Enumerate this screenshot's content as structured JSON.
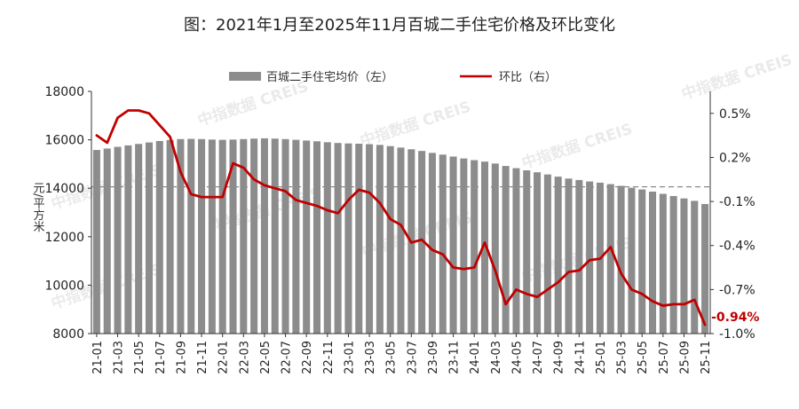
{
  "title": "图：2021年1月至2025年11月百城二手住宅价格及环比变化",
  "watermark": "中指数据 CREIS",
  "chart_data": {
    "type": "bar",
    "title": "图：2021年1月至2025年11月百城二手住宅价格及环比变化",
    "legend_position": "top-center",
    "ylabel_left": "元/平方米",
    "left_axis": {
      "min": 8000,
      "max": 18000,
      "ticks": [
        "8000",
        "10000",
        "12000",
        "14000",
        "16000",
        "18000"
      ]
    },
    "right_axis": {
      "min": -1.0,
      "max": 0.65,
      "ticks": [
        "0.5%",
        "0.2%",
        "-0.1%",
        "-0.4%",
        "-0.7%",
        "-1.0%"
      ],
      "tick_values": [
        0.5,
        0.2,
        -0.1,
        -0.4,
        -0.7,
        -1.0
      ],
      "zero_reference_line": true
    },
    "x_tick_labels": [
      "21-01",
      "21-03",
      "21-05",
      "21-07",
      "21-09",
      "21-11",
      "22-01",
      "22-03",
      "22-05",
      "22-07",
      "22-09",
      "22-11",
      "23-01",
      "23-03",
      "23-05",
      "23-07",
      "23-09",
      "23-11",
      "24-01",
      "24-03",
      "24-05",
      "24-07",
      "24-09",
      "24-11",
      "25-01",
      "25-03",
      "25-05",
      "25-07",
      "25-09",
      "25-11"
    ],
    "categories": [
      "21-01",
      "21-02",
      "21-03",
      "21-04",
      "21-05",
      "21-06",
      "21-07",
      "21-08",
      "21-09",
      "21-10",
      "21-11",
      "21-12",
      "22-01",
      "22-02",
      "22-03",
      "22-04",
      "22-05",
      "22-06",
      "22-07",
      "22-08",
      "22-09",
      "22-10",
      "22-11",
      "22-12",
      "23-01",
      "23-02",
      "23-03",
      "23-04",
      "23-05",
      "23-06",
      "23-07",
      "23-08",
      "23-09",
      "23-10",
      "23-11",
      "23-12",
      "24-01",
      "24-02",
      "24-03",
      "24-04",
      "24-05",
      "24-06",
      "24-07",
      "24-08",
      "24-09",
      "24-10",
      "24-11",
      "24-12",
      "25-01",
      "25-02",
      "25-03",
      "25-04",
      "25-05",
      "25-06",
      "25-07",
      "25-08",
      "25-09",
      "25-10",
      "25-11"
    ],
    "series": [
      {
        "name": "百城二手住宅均价（左）",
        "type": "bar",
        "axis": "left",
        "color": "#8c8c8c",
        "values": [
          15580,
          15640,
          15710,
          15770,
          15830,
          15890,
          15950,
          15990,
          16030,
          16040,
          16030,
          16010,
          16000,
          16010,
          16030,
          16050,
          16060,
          16050,
          16030,
          16000,
          15970,
          15940,
          15900,
          15870,
          15850,
          15840,
          15820,
          15790,
          15740,
          15680,
          15610,
          15540,
          15460,
          15390,
          15310,
          15230,
          15160,
          15100,
          15020,
          14920,
          14830,
          14740,
          14660,
          14570,
          14480,
          14400,
          14340,
          14280,
          14230,
          14170,
          14100,
          14020,
          13950,
          13860,
          13770,
          13680,
          13580,
          13480,
          13350
        ]
      },
      {
        "name": "环比（右）",
        "type": "line",
        "axis": "right",
        "color": "#c00000",
        "values": [
          0.35,
          0.3,
          0.47,
          0.52,
          0.52,
          0.5,
          0.42,
          0.34,
          0.1,
          -0.05,
          -0.07,
          -0.07,
          -0.07,
          0.16,
          0.13,
          0.05,
          0.01,
          -0.01,
          -0.03,
          -0.09,
          -0.11,
          -0.13,
          -0.16,
          -0.18,
          -0.09,
          -0.02,
          -0.04,
          -0.11,
          -0.22,
          -0.26,
          -0.38,
          -0.36,
          -0.43,
          -0.46,
          -0.55,
          -0.56,
          -0.55,
          -0.38,
          -0.57,
          -0.8,
          -0.7,
          -0.73,
          -0.75,
          -0.7,
          -0.65,
          -0.58,
          -0.57,
          -0.5,
          -0.49,
          -0.41,
          -0.59,
          -0.7,
          -0.73,
          -0.78,
          -0.81,
          -0.8,
          -0.8,
          -0.77,
          -0.94
        ]
      }
    ],
    "annotations": [
      {
        "text": "-0.94%",
        "color": "#c00000",
        "at_category": "25-11"
      }
    ]
  }
}
